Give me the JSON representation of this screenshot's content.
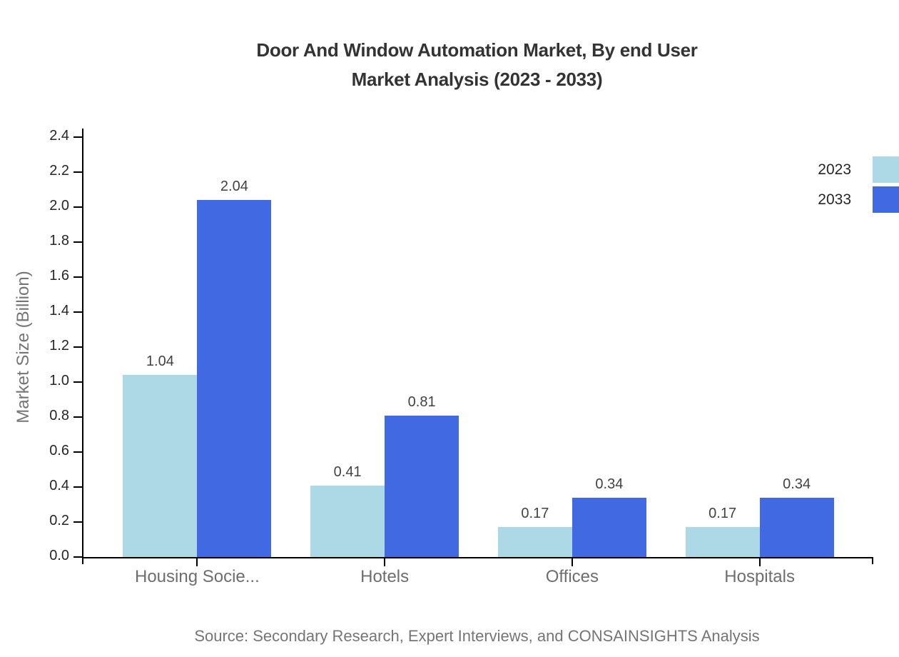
{
  "title": {
    "line1": "Door And Window Automation Market, By end User",
    "line2": "Market Analysis (2023 - 2033)"
  },
  "source": "Source: Secondary Research, Expert Interviews, and CONSAINSIGHTS Analysis",
  "chart_data": {
    "type": "bar",
    "title": "Door And Window Automation Market, By end User Market Analysis (2023 - 2033)",
    "categories": [
      "Housing Socie...",
      "Hotels",
      "Offices",
      "Hospitals"
    ],
    "series": [
      {
        "name": "2023",
        "color": "#ADD8E6",
        "values": [
          1.04,
          0.41,
          0.17,
          0.17
        ]
      },
      {
        "name": "2033",
        "color": "#4169E1",
        "values": [
          2.04,
          0.81,
          0.34,
          0.34
        ]
      }
    ],
    "xlabel": "",
    "ylabel": "Market Size (Billion)",
    "ylim": [
      0,
      2.4
    ],
    "ytick_step": 0.2,
    "grid": false,
    "legend_position": "top-right",
    "value_labels": true,
    "value_label_decimals": 2,
    "axis_color": "#000000",
    "tick_label_color": "#262626",
    "category_label_color": "#6e6e6e",
    "value_label_color": "#424242",
    "title_color": "#333333",
    "source_color": "#757575"
  }
}
